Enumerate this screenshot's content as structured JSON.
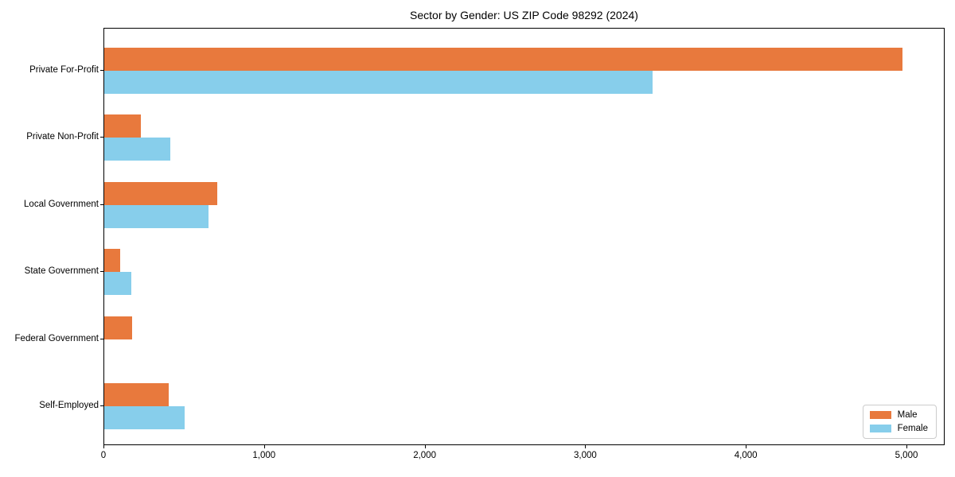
{
  "title": "Sector by Gender: US ZIP Code 98292 (2024)",
  "chart_data": {
    "type": "bar",
    "orientation": "horizontal",
    "title": "Sector by Gender: US ZIP Code 98292 (2024)",
    "categories": [
      "Private For-Profit",
      "Private Non-Profit",
      "Local Government",
      "State Government",
      "Federal Government",
      "Self-Employed"
    ],
    "series": [
      {
        "name": "Male",
        "color": "#e8793d",
        "values": [
          4980,
          230,
          705,
          100,
          175,
          400
        ]
      },
      {
        "name": "Female",
        "color": "#87ceeb",
        "values": [
          3420,
          410,
          650,
          170,
          0,
          500
        ]
      }
    ],
    "xlabel": "",
    "ylabel": "",
    "xlim": [
      0,
      5238
    ],
    "x_tick_values": [
      0,
      1000,
      2000,
      3000,
      4000,
      5000
    ],
    "x_tick_labels": [
      "0",
      "1,000",
      "2,000",
      "3,000",
      "4,000",
      "5,000"
    ],
    "grid": false,
    "legend_position": "lower right",
    "legend_entries": [
      "Male",
      "Female"
    ]
  }
}
